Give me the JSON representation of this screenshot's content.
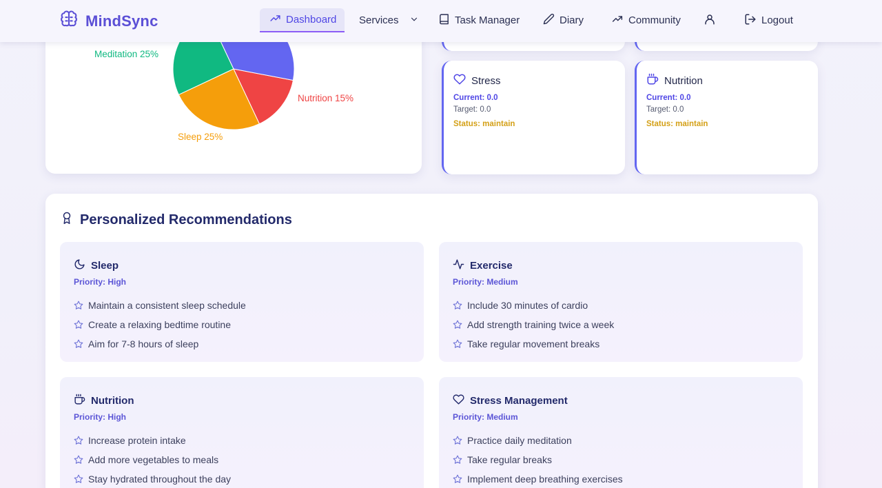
{
  "app": {
    "name": "MindSync"
  },
  "nav": {
    "dashboard": "Dashboard",
    "services": "Services",
    "task_manager": "Task Manager",
    "diary": "Diary",
    "community": "Community",
    "logout": "Logout"
  },
  "chart_data": {
    "type": "pie",
    "slices": [
      {
        "label": "Meditation 25%",
        "value": 25,
        "color": "#10b981"
      },
      {
        "label": "Sleep 25%",
        "value": 25,
        "color": "#f59e0b"
      },
      {
        "label": "Nutrition 15%",
        "value": 15,
        "color": "#ef4444"
      },
      {
        "label": "",
        "value": 35,
        "color": "#6366f1"
      }
    ]
  },
  "metrics": [
    {
      "title": "Stress",
      "icon": "heart-icon",
      "current": "Current: 0.0",
      "target": "Target: 0.0",
      "status": "Status: maintain"
    },
    {
      "title": "Nutrition",
      "icon": "coffee-icon",
      "current": "Current: 0.0",
      "target": "Target: 0.0",
      "status": "Status: maintain"
    }
  ],
  "recommendations": {
    "title": "Personalized Recommendations",
    "items": [
      {
        "title": "Sleep",
        "icon": "moon-icon",
        "priority": "Priority: High",
        "tips": [
          "Maintain a consistent sleep schedule",
          "Create a relaxing bedtime routine",
          "Aim for 7-8 hours of sleep"
        ]
      },
      {
        "title": "Exercise",
        "icon": "activity-icon",
        "priority": "Priority: Medium",
        "tips": [
          "Include 30 minutes of cardio",
          "Add strength training twice a week",
          "Take regular movement breaks"
        ]
      },
      {
        "title": "Nutrition",
        "icon": "coffee-icon",
        "priority": "Priority: High",
        "tips": [
          "Increase protein intake",
          "Add more vegetables to meals",
          "Stay hydrated throughout the day"
        ]
      },
      {
        "title": "Stress Management",
        "icon": "heart-icon",
        "priority": "Priority: Medium",
        "tips": [
          "Practice daily meditation",
          "Take regular breaks",
          "Implement deep breathing exercises"
        ]
      }
    ]
  },
  "colors": {
    "accent": "#4f46e5",
    "status": "#d4a017",
    "brand": "#5b4fd6"
  }
}
